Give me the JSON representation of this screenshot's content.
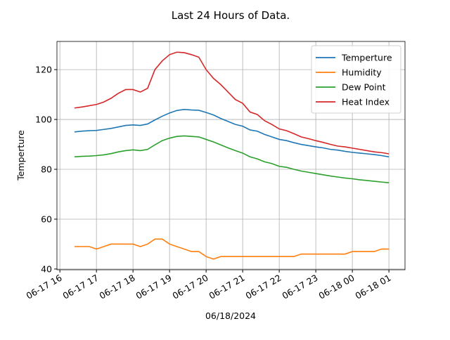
{
  "chart_data": {
    "type": "line",
    "title": "Last 24 Hours of Data.",
    "x_label": "06/18/2024",
    "y_label": "Temperture",
    "x": [
      16.4,
      16.6,
      16.8,
      17.0,
      17.2,
      17.4,
      17.6,
      17.8,
      18.0,
      18.2,
      18.4,
      18.6,
      18.8,
      19.0,
      19.2,
      19.4,
      19.6,
      19.8,
      20.0,
      20.2,
      20.4,
      20.6,
      20.8,
      21.0,
      21.2,
      21.4,
      21.6,
      21.8,
      22.0,
      22.2,
      22.4,
      22.6,
      22.8,
      23.0,
      23.2,
      23.4,
      23.6,
      23.8,
      24.0,
      24.2,
      24.4,
      24.6,
      24.8,
      25.0
    ],
    "series": [
      {
        "name": "Temperture",
        "color": "#1f77b4",
        "values": [
          95,
          95.3,
          95.5,
          95.6,
          96,
          96.4,
          97,
          97.6,
          97.8,
          97.6,
          98.2,
          99.8,
          101.3,
          102.6,
          103.6,
          104,
          103.8,
          103.7,
          102.8,
          101.8,
          100.4,
          99.2,
          98,
          97.3,
          95.8,
          95.3,
          94,
          93,
          92,
          91.5,
          90.7,
          90,
          89.5,
          89,
          88.6,
          88,
          87.7,
          87.2,
          86.8,
          86.5,
          86.2,
          85.9,
          85.5,
          85.0
        ]
      },
      {
        "name": "Humidity",
        "color": "#ff7f0e",
        "values": [
          49,
          49,
          49,
          48,
          49,
          50,
          50,
          50,
          50,
          49,
          50,
          52,
          52,
          50,
          49,
          48,
          47,
          47,
          45,
          44,
          45,
          45,
          45,
          45,
          45,
          45,
          45,
          45,
          45,
          45,
          45,
          46,
          46,
          46,
          46,
          46,
          46,
          46,
          47,
          47,
          47,
          47,
          48,
          48
        ]
      },
      {
        "name": "Dew Point",
        "color": "#2ca02c",
        "values": [
          85,
          85.2,
          85.3,
          85.5,
          85.8,
          86.3,
          87,
          87.5,
          87.8,
          87.5,
          88,
          89.8,
          91.5,
          92.5,
          93.2,
          93.4,
          93.2,
          93,
          92,
          91,
          89.8,
          88.6,
          87.5,
          86.5,
          85,
          84.2,
          83,
          82.3,
          81.2,
          80.8,
          80,
          79.3,
          78.8,
          78.3,
          77.8,
          77.3,
          76.9,
          76.5,
          76.2,
          75.8,
          75.5,
          75.2,
          74.9,
          74.6
        ]
      },
      {
        "name": "Heat Index",
        "color": "#d62728",
        "values": [
          104.6,
          105,
          105.5,
          106,
          107,
          108.5,
          110.5,
          112,
          112,
          111,
          112.5,
          120,
          123.5,
          126,
          127,
          126.8,
          126,
          125,
          120,
          116.5,
          114,
          111,
          108,
          106.5,
          103,
          102,
          99.5,
          98,
          96.2,
          95.5,
          94.3,
          93,
          92.3,
          91.5,
          90.8,
          90,
          89.3,
          89,
          88.5,
          88,
          87.5,
          87,
          86.7,
          86.2
        ]
      }
    ],
    "xlim": [
      15.92,
      25.44
    ],
    "ylim": [
      39.7,
      131.3
    ],
    "xticks": [
      {
        "value": 16,
        "label": "06-17 16"
      },
      {
        "value": 17,
        "label": "06-17 17"
      },
      {
        "value": 18,
        "label": "06-17 18"
      },
      {
        "value": 19,
        "label": "06-17 19"
      },
      {
        "value": 20,
        "label": "06-17 20"
      },
      {
        "value": 21,
        "label": "06-17 21"
      },
      {
        "value": 22,
        "label": "06-17 22"
      },
      {
        "value": 23,
        "label": "06-17 23"
      },
      {
        "value": 24,
        "label": "06-18 00"
      },
      {
        "value": 25,
        "label": "06-18 01"
      }
    ],
    "yticks": [
      40,
      60,
      80,
      100,
      120
    ],
    "grid": true,
    "legend": "upper right"
  }
}
